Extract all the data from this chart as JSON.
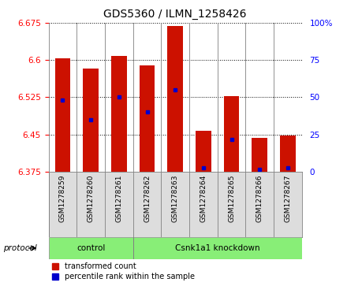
{
  "title": "GDS5360 / ILMN_1258426",
  "samples": [
    "GSM1278259",
    "GSM1278260",
    "GSM1278261",
    "GSM1278262",
    "GSM1278263",
    "GSM1278264",
    "GSM1278265",
    "GSM1278266",
    "GSM1278267"
  ],
  "red_values": [
    6.603,
    6.583,
    6.608,
    6.59,
    6.668,
    6.458,
    6.528,
    6.443,
    6.447
  ],
  "blue_values": [
    6.52,
    6.48,
    6.525,
    6.495,
    6.54,
    6.382,
    6.44,
    6.38,
    6.383
  ],
  "y_min": 6.375,
  "y_max": 6.675,
  "y_ticks": [
    6.375,
    6.45,
    6.525,
    6.6,
    6.675
  ],
  "right_y_ticks": [
    0,
    25,
    50,
    75,
    100
  ],
  "bar_color": "#CC1100",
  "marker_color": "#0000CC",
  "bar_width": 0.55,
  "control_count": 3,
  "knockdown_count": 6,
  "protocol_label": "protocol",
  "green_color": "#88EE77",
  "gray_bg": "#DDDDDD",
  "legend_items": [
    {
      "label": "transformed count",
      "color": "#CC1100"
    },
    {
      "label": "percentile rank within the sample",
      "color": "#0000CC"
    }
  ]
}
